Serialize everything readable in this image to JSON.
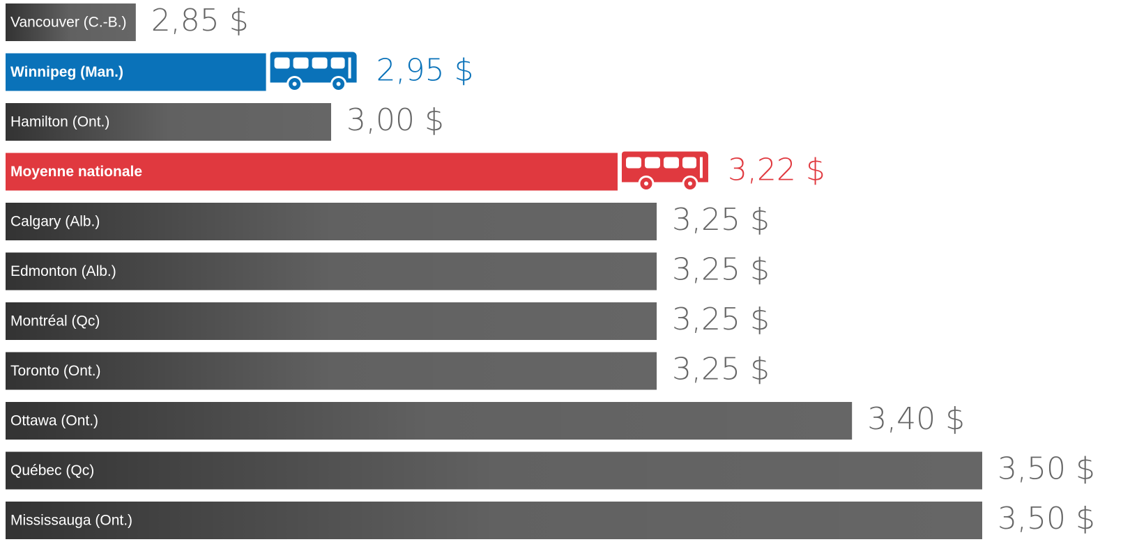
{
  "chart_data": {
    "type": "barh",
    "categories": [
      "Vancouver (C.-B.)",
      "Winnipeg (Man.)",
      "Hamilton (Ont.)",
      "Moyenne nationale",
      "Calgary (Alb.)",
      "Edmonton (Alb.)",
      "Montréal (Qc)",
      "Toronto (Ont.)",
      "Ottawa (Ont.)",
      "Québec (Qc)",
      "Mississauga (Ont.)"
    ],
    "values": [
      2.85,
      2.95,
      3.0,
      3.22,
      3.25,
      3.25,
      3.25,
      3.25,
      3.4,
      3.5,
      3.5
    ],
    "value_labels": [
      "2,85 $",
      "2,95 $",
      "3,00 $",
      "3,22 $",
      "3,25 $",
      "3,25 $",
      "3,25 $",
      "3,25 $",
      "3,40 $",
      "3,50 $",
      "3,50 $"
    ],
    "color": "#666666",
    "colors": [
      "#666666",
      "#0a72b9",
      "#666666",
      "#e0393f",
      "#666666",
      "#666666",
      "#666666",
      "#666666",
      "#666666",
      "#666666",
      "#666666"
    ],
    "xlim": [
      2.75,
      3.5
    ]
  }
}
